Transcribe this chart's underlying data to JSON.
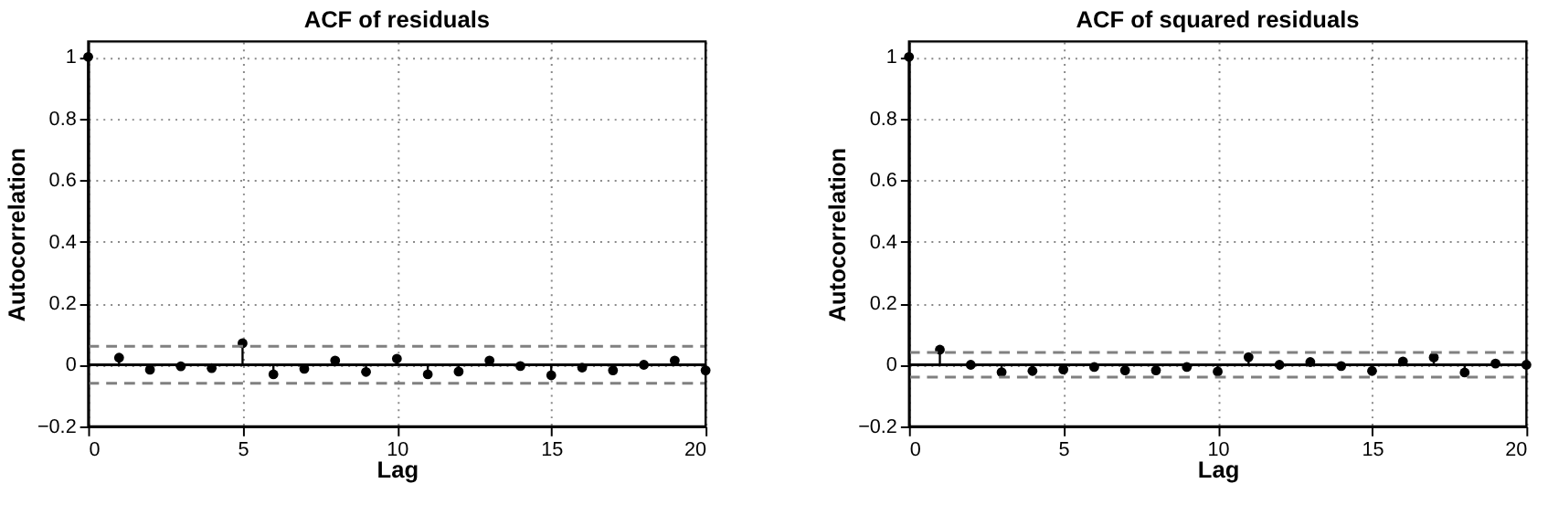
{
  "chart_data": [
    {
      "type": "lollipop",
      "title": "ACF of residuals",
      "xlabel": "Lag",
      "ylabel": "Autocorrelation",
      "x": [
        0,
        1,
        2,
        3,
        4,
        5,
        6,
        7,
        8,
        9,
        10,
        11,
        12,
        13,
        14,
        15,
        16,
        17,
        18,
        19,
        20
      ],
      "series": [
        {
          "color": "#000000",
          "values": [
            1,
            0.023,
            -0.016,
            -0.005,
            -0.011,
            0.07,
            -0.031,
            -0.013,
            0.014,
            -0.023,
            0.02,
            -0.031,
            -0.022,
            0.014,
            -0.004,
            -0.034,
            -0.009,
            -0.018,
            0,
            0.014,
            -0.018
          ]
        }
      ],
      "xlim": [
        0,
        20
      ],
      "xticks": [
        0,
        5,
        10,
        15,
        20
      ],
      "ylim": [
        -0.2,
        1.05
      ],
      "yticks": [
        -0.2,
        0,
        0.2,
        0.4,
        0.6,
        0.8,
        1
      ],
      "grid": true,
      "marker": "circle",
      "ref_lines": [
        {
          "axis": "y",
          "value": 0.06,
          "color": "#808080",
          "line_style": "dashed"
        },
        {
          "axis": "y",
          "value": -0.06,
          "color": "#808080",
          "line_style": "dashed"
        },
        {
          "axis": "y",
          "value": 0,
          "color": "#000000",
          "line_style": "solid"
        }
      ]
    },
    {
      "type": "lollipop",
      "title": "ACF of squared residuals",
      "xlabel": "Lag",
      "ylabel": "Autocorrelation",
      "x": [
        0,
        1,
        2,
        3,
        4,
        5,
        6,
        7,
        8,
        9,
        10,
        11,
        12,
        13,
        14,
        15,
        16,
        17,
        18,
        19,
        20
      ],
      "series": [
        {
          "color": "#000000",
          "values": [
            1,
            0.049,
            0,
            -0.024,
            -0.02,
            -0.015,
            -0.007,
            -0.018,
            -0.018,
            -0.007,
            -0.022,
            0.025,
            0,
            0.009,
            -0.004,
            -0.02,
            0.011,
            0.024,
            -0.025,
            0.004,
            0
          ]
        }
      ],
      "xlim": [
        0,
        20
      ],
      "xticks": [
        0,
        5,
        10,
        15,
        20
      ],
      "ylim": [
        -0.2,
        1.05
      ],
      "yticks": [
        -0.2,
        0,
        0.2,
        0.4,
        0.6,
        0.8,
        1
      ],
      "grid": true,
      "marker": "circle",
      "ref_lines": [
        {
          "axis": "y",
          "value": 0.04,
          "color": "#808080",
          "line_style": "dashed"
        },
        {
          "axis": "y",
          "value": -0.04,
          "color": "#808080",
          "line_style": "dashed"
        },
        {
          "axis": "y",
          "value": 0,
          "color": "#000000",
          "line_style": "solid"
        }
      ]
    }
  ]
}
